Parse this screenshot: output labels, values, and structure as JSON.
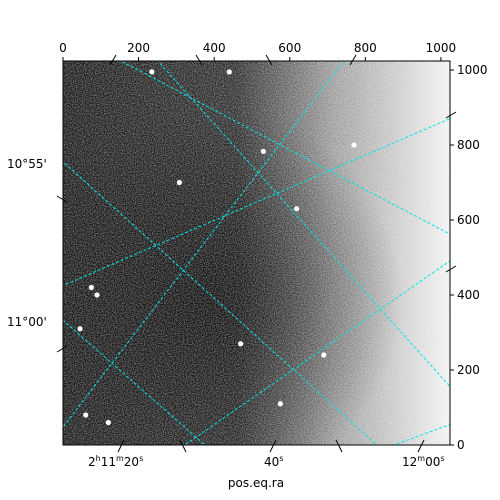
{
  "figure": {
    "xlabel": "pos.eq.ra",
    "ylabel": "",
    "grid_color": "#00e5e5",
    "background": "#ffffff"
  },
  "pixel_axes": {
    "top_ticks": [
      "0",
      "200",
      "400",
      "600",
      "800",
      "1000"
    ],
    "top_values": [
      0,
      200,
      400,
      600,
      800,
      1000
    ],
    "right_ticks": [
      "0",
      "200",
      "400",
      "600",
      "800",
      "1000"
    ],
    "right_values": [
      0,
      200,
      400,
      600,
      800,
      1000
    ],
    "xlim": [
      0,
      1024
    ],
    "ylim": [
      0,
      1024
    ]
  },
  "world_axes": {
    "ra_ticks": [
      {
        "base": "2",
        "sup1": "h",
        "mid": "11",
        "sup2": "m",
        "main": "20",
        "sup3": "s"
      },
      {
        "base": "",
        "sup1": "",
        "mid": "",
        "sup2": "",
        "main": "40",
        "sup3": "s"
      },
      {
        "base": "",
        "sup1": "",
        "mid": "12",
        "sup2": "m",
        "main": "00",
        "sup3": "s"
      }
    ],
    "dec_ticks": [
      "10°55'",
      "11°00'"
    ]
  },
  "image": {
    "colormap": "gray",
    "stars": [
      {
        "x": 235,
        "y": 995
      },
      {
        "x": 440,
        "y": 995
      },
      {
        "x": 530,
        "y": 783
      },
      {
        "x": 770,
        "y": 800
      },
      {
        "x": 308,
        "y": 700
      },
      {
        "x": 618,
        "y": 630
      },
      {
        "x": 45,
        "y": 310
      },
      {
        "x": 470,
        "y": 270
      },
      {
        "x": 575,
        "y": 110
      },
      {
        "x": 60,
        "y": 80
      },
      {
        "x": 120,
        "y": 60
      },
      {
        "x": 690,
        "y": 240
      },
      {
        "x": 90,
        "y": 400
      },
      {
        "x": 75,
        "y": 420
      }
    ]
  }
}
